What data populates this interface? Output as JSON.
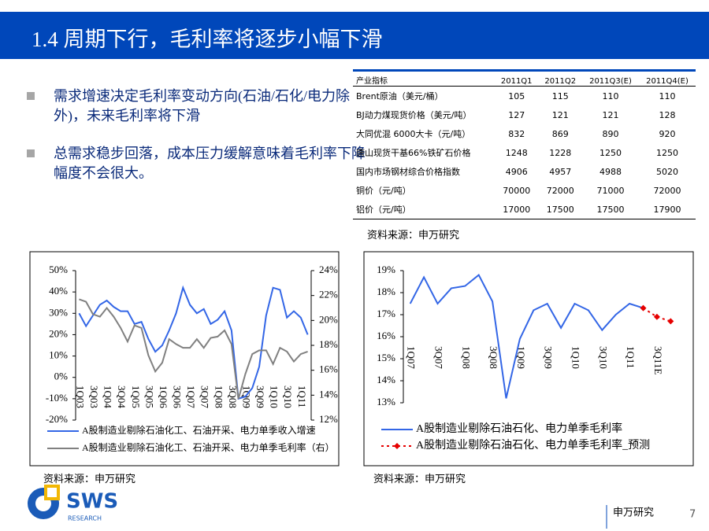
{
  "header": {
    "title": "1.4 周期下行，毛利率将逐步小幅下滑"
  },
  "bullets": [
    "需求增速决定毛利率变动方向(石油/石化/电力除外)，未来毛利率将下滑",
    "总需求稳步回落，成本压力缓解意味着毛利率下降幅度不会很大。"
  ],
  "table": {
    "header": [
      "产业指标",
      "2011Q1",
      "2011Q2",
      "2011Q3(E)",
      "2011Q4(E)"
    ],
    "rows": [
      [
        "Brent原油（美元/桶）",
        "105",
        "115",
        "110",
        "110"
      ],
      [
        "BJ动力煤现货价格（美元/吨）",
        "127",
        "121",
        "121",
        "128"
      ],
      [
        "大同优混 6000大卡（元/吨）",
        "832",
        "869",
        "890",
        "920"
      ],
      [
        "唐山现货干基66%铁矿石价格",
        "1248",
        "1228",
        "1250",
        "1250"
      ],
      [
        "国内市场钢材综合价格指数",
        "4906",
        "4957",
        "4988",
        "5020"
      ],
      [
        "铜价（元/吨）",
        "70000",
        "72000",
        "71000",
        "72000"
      ],
      [
        "铝价（元/吨）",
        "17000",
        "17500",
        "17500",
        "17900"
      ]
    ],
    "source": "资料来源：申万研究"
  },
  "chart_data": [
    {
      "type": "line",
      "categories": [
        "1Q03",
        null,
        "3Q03",
        null,
        "1Q04",
        null,
        "3Q04",
        null,
        "1Q05",
        null,
        "3Q05",
        null,
        "1Q06",
        null,
        "3Q06",
        null,
        "1Q07",
        null,
        "3Q07",
        null,
        "1Q08",
        null,
        "3Q08",
        null,
        "1Q09",
        null,
        "3Q09",
        null,
        "1Q10",
        null,
        "3Q10",
        null,
        "1Q11",
        null
      ],
      "series": [
        {
          "name": "A股制造业剔除石油化工、石油开采、电力单季收入增速",
          "color": "#3366e6",
          "values": [
            30,
            24,
            29,
            34,
            36,
            33,
            31,
            31,
            25,
            26,
            18,
            12,
            15,
            22,
            30,
            42,
            34,
            30,
            32,
            25,
            27,
            31,
            22,
            -10,
            -9,
            -5,
            5,
            29,
            42,
            41,
            28,
            31,
            28,
            20
          ]
        },
        {
          "name": "A股制造业剔除石油化工、石油开采、电力单季毛利率（右）",
          "color": "#808080",
          "axis": "y2",
          "values": [
            21.7,
            21.5,
            20.5,
            20.3,
            21.0,
            20.3,
            19.4,
            18.3,
            19.6,
            19.4,
            17.2,
            15.9,
            16.6,
            18.5,
            18.1,
            17.8,
            17.8,
            18.5,
            17.8,
            18.6,
            18.7,
            19.2,
            18.1,
            13.7,
            15.7,
            17.3,
            17.6,
            17.6,
            16.5,
            17.8,
            17.5,
            16.7,
            17.3,
            17.5
          ]
        }
      ],
      "ylim": [
        -20,
        50
      ],
      "yticks": [
        {
          "value": -20,
          "label": "-20%"
        },
        {
          "value": -10,
          "label": "-10%"
        },
        {
          "value": 0,
          "label": "0%"
        },
        {
          "value": 10,
          "label": "10%"
        },
        {
          "value": 20,
          "label": "20%"
        },
        {
          "value": 30,
          "label": "30%"
        },
        {
          "value": 40,
          "label": "40%"
        },
        {
          "value": 50,
          "label": "50%"
        }
      ],
      "y2lim": [
        12,
        24
      ],
      "y2ticks": [
        {
          "value": 12,
          "label": "12%"
        },
        {
          "value": 14,
          "label": "14%"
        },
        {
          "value": 16,
          "label": "16%"
        },
        {
          "value": 18,
          "label": "18%"
        },
        {
          "value": 20,
          "label": "20%"
        },
        {
          "value": 22,
          "label": "22%"
        },
        {
          "value": 24,
          "label": "24%"
        }
      ],
      "source": "资料来源：申万研究"
    },
    {
      "type": "line",
      "categories": [
        "1Q07",
        null,
        "3Q07",
        null,
        "1Q08",
        null,
        "3Q08",
        null,
        "1Q09",
        null,
        "3Q09",
        null,
        "1Q10",
        null,
        "3Q10",
        null,
        "1Q11",
        null,
        "3Q11E",
        null
      ],
      "series": [
        {
          "name": "A股制造业剔除石油石化、电力单季毛利率",
          "color": "#3366e6",
          "values": [
            17.5,
            18.7,
            17.5,
            18.2,
            18.3,
            18.8,
            17.6,
            13.2,
            15.9,
            17.2,
            17.5,
            16.4,
            17.5,
            17.2,
            16.3,
            17.0,
            17.5,
            17.3,
            null,
            null
          ]
        },
        {
          "name": "A股制造业剔除石油石化、电力单季毛利率_预测",
          "color": "#e60000",
          "line_style": "dashed",
          "marker": "diamond",
          "values": [
            null,
            null,
            null,
            null,
            null,
            null,
            null,
            null,
            null,
            null,
            null,
            null,
            null,
            null,
            null,
            null,
            null,
            17.3,
            16.9,
            16.7
          ]
        }
      ],
      "ylim": [
        13,
        19
      ],
      "yticks": [
        {
          "value": 13,
          "label": "13%"
        },
        {
          "value": 14,
          "label": "14%"
        },
        {
          "value": 15,
          "label": "15%"
        },
        {
          "value": 16,
          "label": "16%"
        },
        {
          "value": 17,
          "label": "17%"
        },
        {
          "value": 18,
          "label": "18%"
        },
        {
          "value": 19,
          "label": "19%"
        }
      ],
      "source": "资料来源：申万研究"
    }
  ],
  "logo": {
    "name": "SWS",
    "tagline": "RESEARCH"
  },
  "footer": {
    "company": "申万研究",
    "page": "7"
  }
}
